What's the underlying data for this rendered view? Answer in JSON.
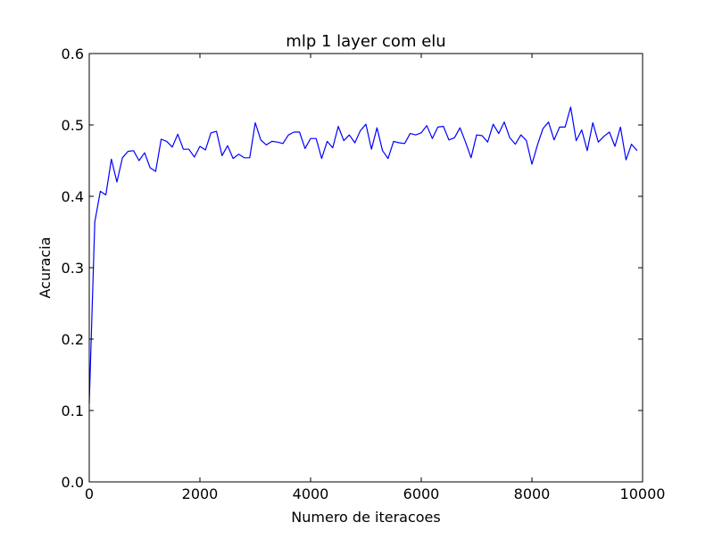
{
  "chart_data": {
    "type": "line",
    "title": "mlp 1 layer com elu",
    "xlabel": "Numero de iteracoes",
    "ylabel": "Acuracia",
    "xlim": [
      0,
      10000
    ],
    "ylim": [
      0.0,
      0.6
    ],
    "xticks": [
      0,
      2000,
      4000,
      6000,
      8000,
      10000
    ],
    "xtick_labels": [
      "0",
      "2000",
      "4000",
      "6000",
      "8000",
      "10000"
    ],
    "yticks": [
      0.0,
      0.1,
      0.2,
      0.3,
      0.4,
      0.5,
      0.6
    ],
    "ytick_labels": [
      "0.0",
      "0.1",
      "0.2",
      "0.3",
      "0.4",
      "0.5",
      "0.6"
    ],
    "grid": false,
    "line_color": "#0000ff",
    "series": [
      {
        "x": [
          0,
          100,
          200,
          300,
          400,
          500,
          600,
          700,
          800,
          900,
          1000,
          1100,
          1200,
          1300,
          1400,
          1500,
          1600,
          1700,
          1800,
          1900,
          2000,
          2100,
          2200,
          2300,
          2400,
          2500,
          2600,
          2700,
          2800,
          2900,
          3000,
          3100,
          3200,
          3300,
          3400,
          3500,
          3600,
          3700,
          3800,
          3900,
          4000,
          4100,
          4200,
          4300,
          4400,
          4500,
          4600,
          4700,
          4800,
          4900,
          5000,
          5100,
          5200,
          5300,
          5400,
          5500,
          5600,
          5700,
          5800,
          5900,
          6000,
          6100,
          6200,
          6300,
          6400,
          6500,
          6600,
          6700,
          6800,
          6900,
          7000,
          7100,
          7200,
          7300,
          7400,
          7500,
          7600,
          7700,
          7800,
          7900,
          8000,
          8100,
          8200,
          8300,
          8400,
          8500,
          8600,
          8700,
          8800,
          8900,
          9000,
          9100,
          9200,
          9300,
          9400,
          9500,
          9600,
          9700,
          9800,
          9900
        ],
        "values": [
          0.11,
          0.364,
          0.407,
          0.402,
          0.452,
          0.42,
          0.454,
          0.463,
          0.464,
          0.45,
          0.461,
          0.44,
          0.435,
          0.48,
          0.477,
          0.469,
          0.487,
          0.466,
          0.466,
          0.455,
          0.47,
          0.465,
          0.489,
          0.491,
          0.457,
          0.471,
          0.453,
          0.459,
          0.454,
          0.454,
          0.503,
          0.479,
          0.472,
          0.477,
          0.476,
          0.474,
          0.486,
          0.49,
          0.49,
          0.467,
          0.481,
          0.481,
          0.453,
          0.477,
          0.468,
          0.498,
          0.478,
          0.486,
          0.475,
          0.492,
          0.501,
          0.466,
          0.496,
          0.464,
          0.453,
          0.477,
          0.475,
          0.474,
          0.488,
          0.486,
          0.489,
          0.499,
          0.481,
          0.497,
          0.498,
          0.479,
          0.482,
          0.496,
          0.476,
          0.454,
          0.486,
          0.485,
          0.476,
          0.501,
          0.488,
          0.504,
          0.482,
          0.473,
          0.486,
          0.478,
          0.445,
          0.472,
          0.495,
          0.504,
          0.479,
          0.497,
          0.497,
          0.525,
          0.478,
          0.493,
          0.464,
          0.503,
          0.476,
          0.484,
          0.49,
          0.47,
          0.497,
          0.451,
          0.473,
          0.464
        ]
      }
    ]
  }
}
